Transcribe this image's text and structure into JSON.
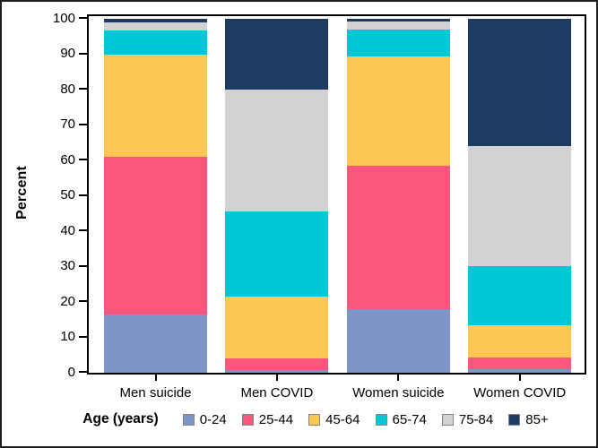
{
  "figure": {
    "background": "#ffffff",
    "border_color": "#1f1f1f"
  },
  "chart_data": {
    "type": "bar",
    "stacked": true,
    "title": "",
    "xlabel": "",
    "ylabel": "Percent",
    "ylim": [
      0,
      100
    ],
    "grid": false,
    "legend_position": "bottom",
    "legend_title": "Age (years)",
    "y_ticks": [
      0,
      10,
      20,
      30,
      40,
      50,
      60,
      70,
      80,
      90,
      100
    ],
    "categories": [
      "Men suicide",
      "Men COVID",
      "Women suicide",
      "Women COVID"
    ],
    "series": [
      {
        "name": "0-24",
        "color": "#7e95c7",
        "values": [
          16.5,
          0.8,
          18.1,
          0.9
        ]
      },
      {
        "name": "25-44",
        "color": "#fb577d",
        "values": [
          44.5,
          3.2,
          40.4,
          3.3
        ]
      },
      {
        "name": "45-64",
        "color": "#fdc751",
        "values": [
          29.0,
          17.5,
          30.9,
          9.2
        ]
      },
      {
        "name": "65-74",
        "color": "#00c7d6",
        "values": [
          6.8,
          24.2,
          7.6,
          16.8
        ]
      },
      {
        "name": "75-84",
        "color": "#d2d2d2",
        "values": [
          2.2,
          34.3,
          2.2,
          33.9
        ]
      },
      {
        "name": "85+",
        "color": "#1c3c63",
        "values": [
          1.0,
          20.0,
          0.8,
          35.9
        ]
      }
    ]
  }
}
